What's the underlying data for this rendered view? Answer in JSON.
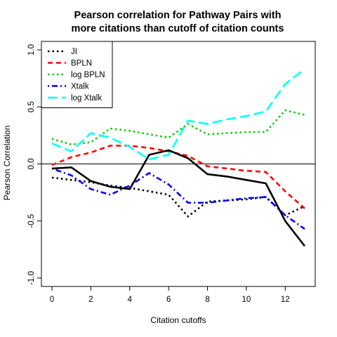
{
  "chart_data": {
    "type": "line",
    "title_lines": [
      "Pearson correlation for Pathway Pairs with",
      "more citations than cutoff of citation counts"
    ],
    "xlabel": "Citation cutoffs",
    "ylabel": "Pearson Correlation",
    "xlim": [
      0,
      13
    ],
    "ylim": [
      -1.0,
      1.0
    ],
    "xticks": [
      0,
      2,
      4,
      6,
      8,
      10,
      12
    ],
    "yticks": [
      -1.0,
      -0.5,
      0.0,
      0.5,
      1.0
    ],
    "ytick_labels": [
      "-1.0",
      "-0.5",
      "0.0",
      "0.5",
      "1.0"
    ],
    "reference_line_y": 0,
    "grid": false,
    "legend_position": "top-left",
    "x": [
      0,
      1,
      2,
      3,
      4,
      5,
      6,
      7,
      8,
      9,
      10,
      11,
      12,
      13
    ],
    "series": [
      {
        "name": "JI",
        "color": "#000000",
        "dash": "dotted",
        "values": [
          -0.12,
          -0.14,
          -0.16,
          -0.19,
          -0.21,
          -0.24,
          -0.27,
          -0.46,
          -0.33,
          -0.32,
          -0.31,
          -0.29,
          -0.45,
          -0.37
        ]
      },
      {
        "name": "BPLN",
        "color": "#ff0000",
        "dash": "dashed",
        "values": [
          -0.01,
          0.06,
          0.1,
          0.16,
          0.16,
          0.14,
          0.11,
          0.07,
          -0.02,
          -0.04,
          -0.06,
          -0.07,
          -0.24,
          -0.39
        ]
      },
      {
        "name": "log BPLN",
        "color": "#00cd00",
        "dash": "dotted",
        "values": [
          0.22,
          0.17,
          0.19,
          0.31,
          0.29,
          0.26,
          0.23,
          0.35,
          0.26,
          0.27,
          0.28,
          0.28,
          0.47,
          0.43
        ]
      },
      {
        "name": "Xtalk",
        "color": "#0000ff",
        "dash": "dashdot",
        "values": [
          -0.04,
          -0.1,
          -0.22,
          -0.27,
          -0.19,
          -0.08,
          -0.18,
          -0.34,
          -0.34,
          -0.32,
          -0.3,
          -0.29,
          -0.45,
          -0.57
        ]
      },
      {
        "name": "log Xtalk",
        "color": "#00ffff",
        "dash": "longdash",
        "values": [
          0.18,
          0.11,
          0.27,
          0.23,
          0.15,
          0.04,
          0.08,
          0.38,
          0.35,
          0.39,
          0.42,
          0.46,
          0.7,
          0.83
        ]
      },
      {
        "name": "",
        "color": "#000000",
        "dash": "solid",
        "values": [
          -0.04,
          -0.03,
          -0.15,
          -0.2,
          -0.22,
          0.08,
          0.12,
          0.05,
          -0.09,
          -0.11,
          -0.14,
          -0.17,
          -0.5,
          -0.72
        ]
      }
    ]
  }
}
